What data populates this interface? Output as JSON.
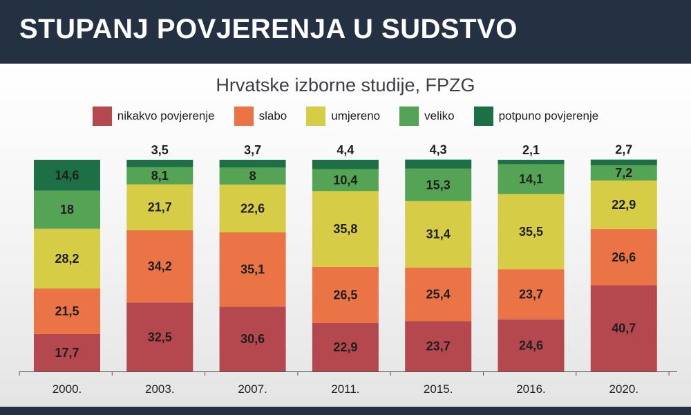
{
  "header": {
    "title": "STUPANJ POVJERENJA U SUDSTVO"
  },
  "chart_data": {
    "type": "bar",
    "stacked": true,
    "title": "Hrvatske izborne studije, FPZG",
    "categories": [
      "2000.",
      "2003.",
      "2007.",
      "2011.",
      "2015.",
      "2016.",
      "2020."
    ],
    "series": [
      {
        "name": "nikakvo povjerenje",
        "color": "#b5474f",
        "values": [
          17.7,
          32.5,
          30.6,
          22.9,
          23.7,
          24.6,
          40.7
        ],
        "labels": [
          "17,7",
          "32,5",
          "30,6",
          "22,9",
          "23,7",
          "24,6",
          "40,7"
        ]
      },
      {
        "name": "slabo",
        "color": "#ea7446",
        "values": [
          21.5,
          34.2,
          35.1,
          26.5,
          25.4,
          23.7,
          26.6
        ],
        "labels": [
          "21,5",
          "34,2",
          "35,1",
          "26,5",
          "25,4",
          "23,7",
          "26,6"
        ]
      },
      {
        "name": "umjereno",
        "color": "#d7cc45",
        "values": [
          28.2,
          21.7,
          22.6,
          35.8,
          31.4,
          35.5,
          22.9
        ],
        "labels": [
          "28,2",
          "21,7",
          "22,6",
          "35,8",
          "31,4",
          "35,5",
          "22,9"
        ]
      },
      {
        "name": "veliko",
        "color": "#55a354",
        "values": [
          18,
          8.1,
          8,
          10.4,
          15.3,
          14.1,
          7.2
        ],
        "labels": [
          "18",
          "8,1",
          "8",
          "10,4",
          "15,3",
          "14,1",
          "7,2"
        ]
      },
      {
        "name": "potpuno povjerenje",
        "color": "#1d6f46",
        "values": [
          14.6,
          3.5,
          3.7,
          4.4,
          4.3,
          2.1,
          2.7
        ],
        "labels": [
          "14,6",
          "3,5",
          "3,7",
          "4,4",
          "4,3",
          "2,1",
          "2,7"
        ]
      }
    ],
    "ylim": [
      0,
      100
    ],
    "legend_position": "top",
    "grid": false
  }
}
